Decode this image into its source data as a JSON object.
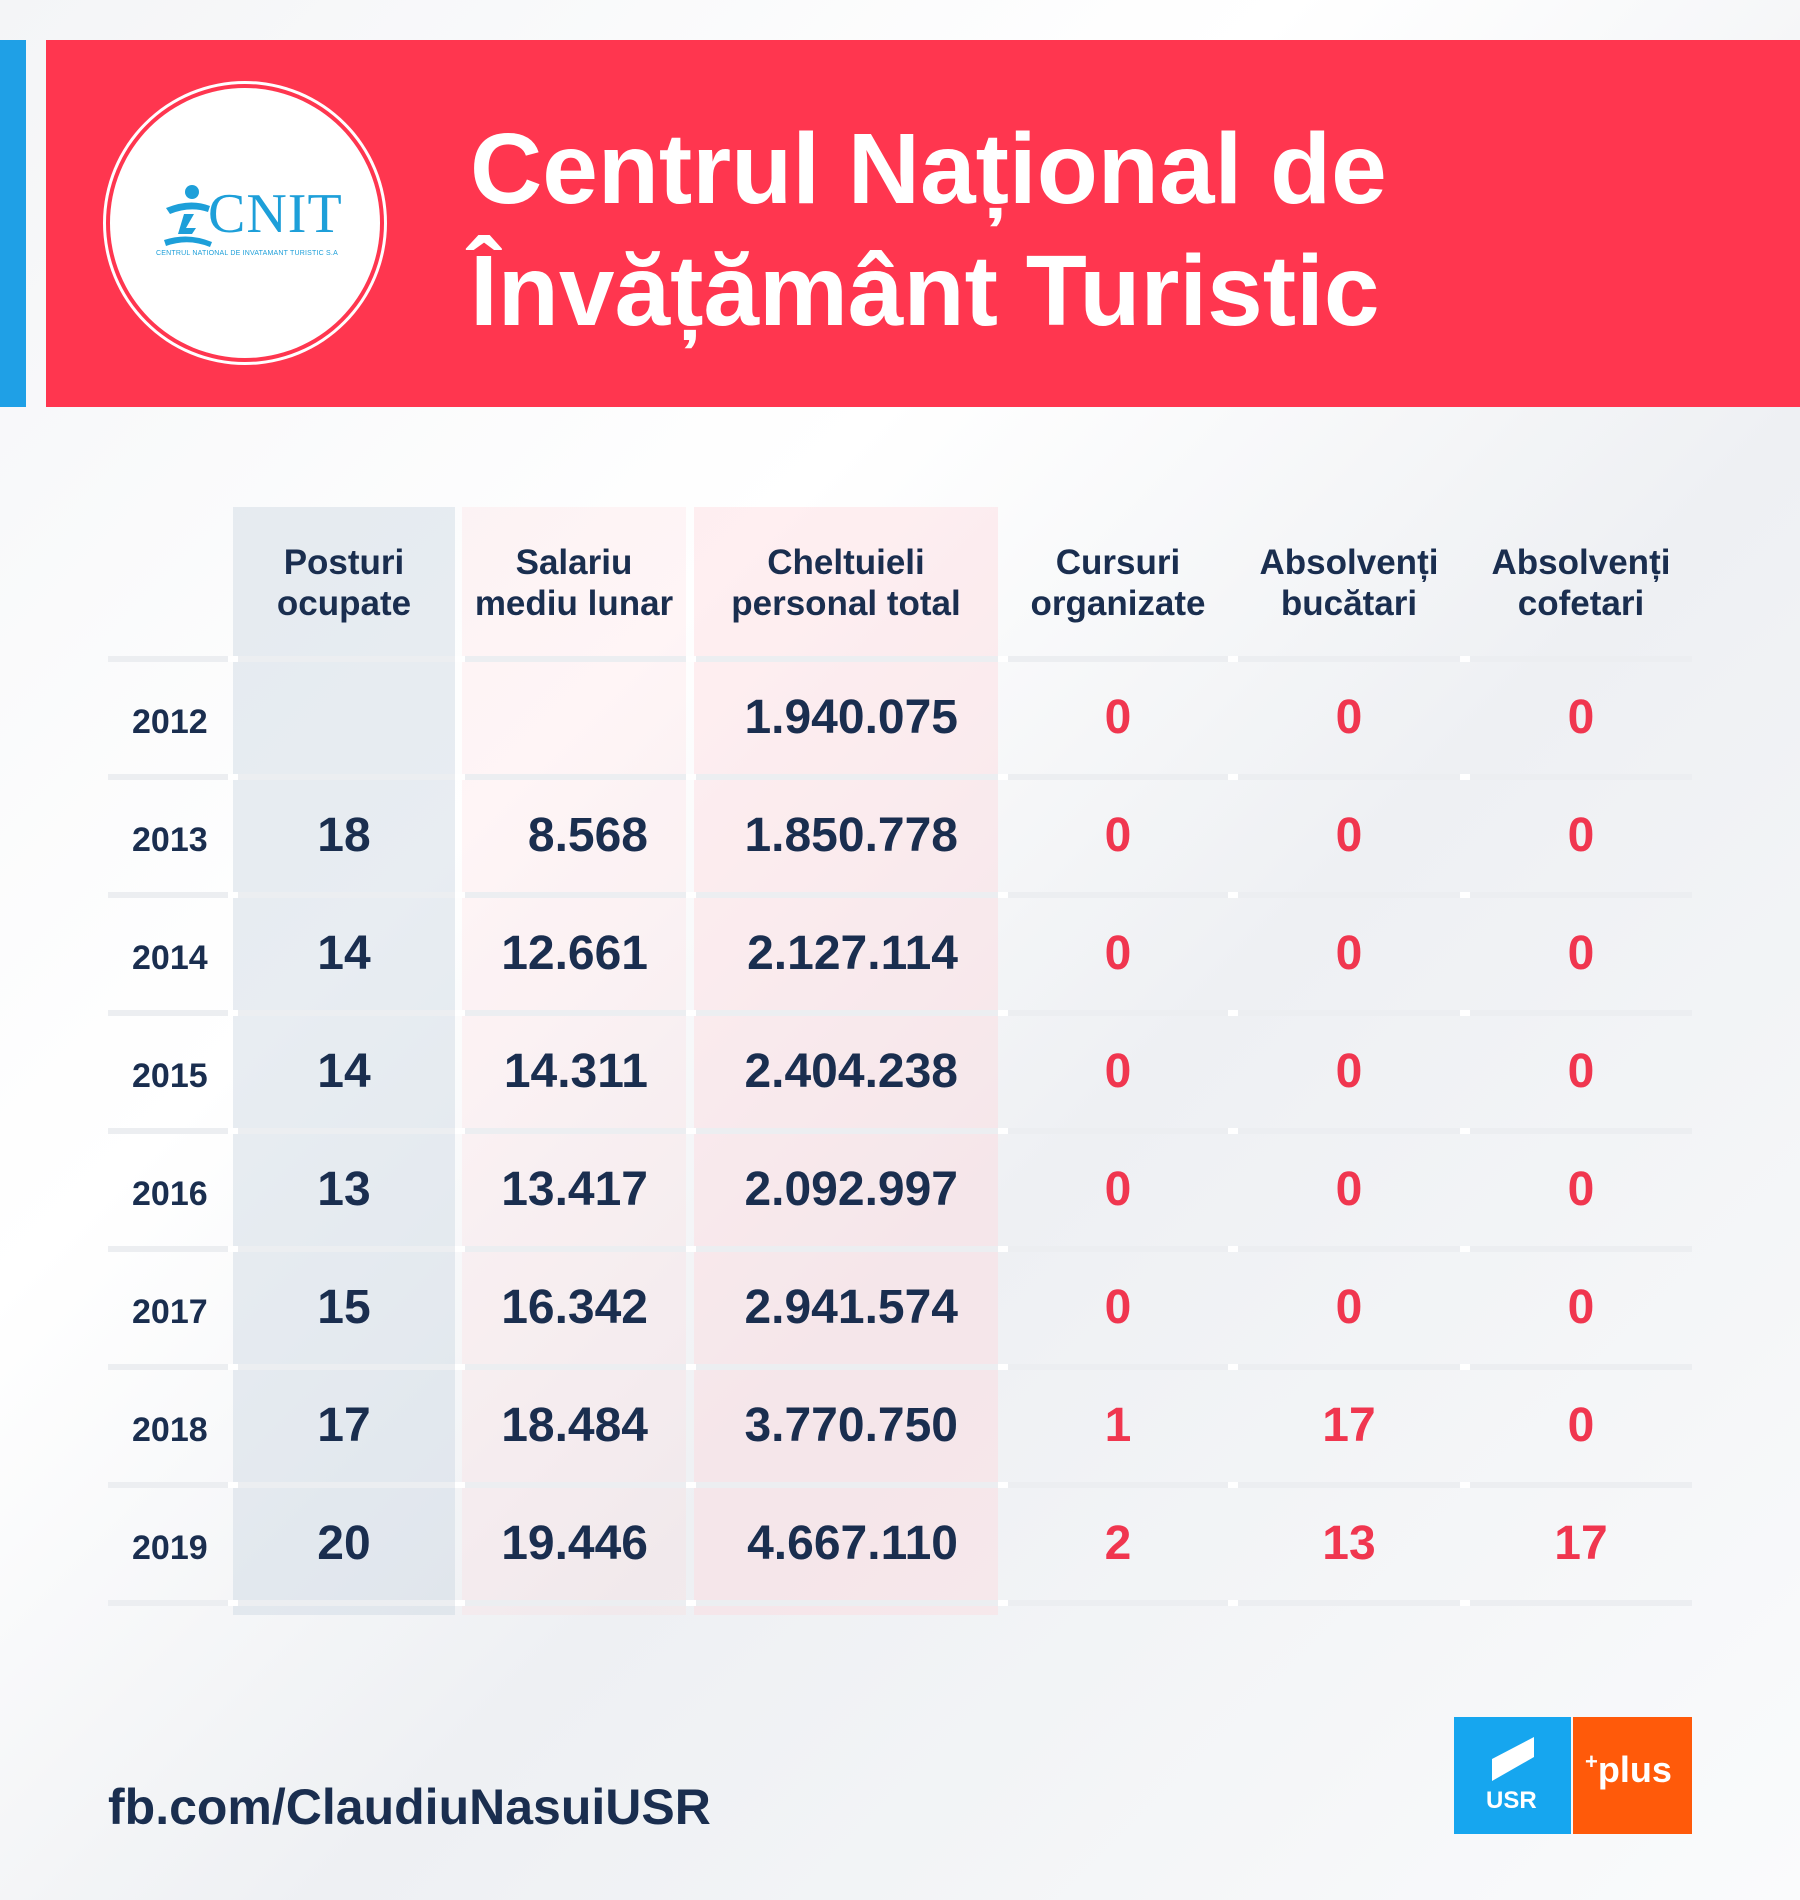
{
  "header": {
    "title_line1": "Centrul Național de",
    "title_line2": "Învățământ Turistic",
    "logo_text": "CNIT",
    "logo_subtext": "CENTRUL NATIONAL DE INVATAMANT TURISTIC S.A"
  },
  "table": {
    "columns": [
      {
        "line1": "Posturi",
        "line2": "ocupate"
      },
      {
        "line1": "Salariu",
        "line2": "mediu lunar"
      },
      {
        "line1": "Cheltuieli",
        "line2": "personal total"
      },
      {
        "line1": "Cursuri",
        "line2": "organizate"
      },
      {
        "line1": "Absolvenți",
        "line2": "bucătari"
      },
      {
        "line1": "Absolvenți",
        "line2": "cofetari"
      }
    ],
    "rows": [
      {
        "year": "2012",
        "posturi": "",
        "salariu": "",
        "cheltuieli": "1.940.075",
        "cursuri": "0",
        "bucatari": "0",
        "cofetari": "0"
      },
      {
        "year": "2013",
        "posturi": "18",
        "salariu": "8.568",
        "cheltuieli": "1.850.778",
        "cursuri": "0",
        "bucatari": "0",
        "cofetari": "0"
      },
      {
        "year": "2014",
        "posturi": "14",
        "salariu": "12.661",
        "cheltuieli": "2.127.114",
        "cursuri": "0",
        "bucatari": "0",
        "cofetari": "0"
      },
      {
        "year": "2015",
        "posturi": "14",
        "salariu": "14.311",
        "cheltuieli": "2.404.238",
        "cursuri": "0",
        "bucatari": "0",
        "cofetari": "0"
      },
      {
        "year": "2016",
        "posturi": "13",
        "salariu": "13.417",
        "cheltuieli": "2.092.997",
        "cursuri": "0",
        "bucatari": "0",
        "cofetari": "0"
      },
      {
        "year": "2017",
        "posturi": "15",
        "salariu": "16.342",
        "cheltuieli": "2.941.574",
        "cursuri": "0",
        "bucatari": "0",
        "cofetari": "0"
      },
      {
        "year": "2018",
        "posturi": "17",
        "salariu": "18.484",
        "cheltuieli": "3.770.750",
        "cursuri": "1",
        "bucatari": "17",
        "cofetari": "0"
      },
      {
        "year": "2019",
        "posturi": "20",
        "salariu": "19.446",
        "cheltuieli": "4.667.110",
        "cursuri": "2",
        "bucatari": "13",
        "cofetari": "17"
      }
    ]
  },
  "footer": {
    "link": "fb.com/ClaudiuNasuiUSR",
    "usr_label": "USR",
    "plus_label": "plus",
    "plus_sup": "+"
  },
  "colors": {
    "header_red": "#ff364f",
    "accent_blue": "#1fa0e6",
    "text_navy": "#1a2e4f",
    "value_red": "#f0364f",
    "usr_blue": "#16a6ef",
    "plus_orange": "#ff5a0a"
  },
  "icons": [
    "cnit-logo-figure-icon",
    "usr-logo-icon",
    "plus-logo-icon"
  ]
}
